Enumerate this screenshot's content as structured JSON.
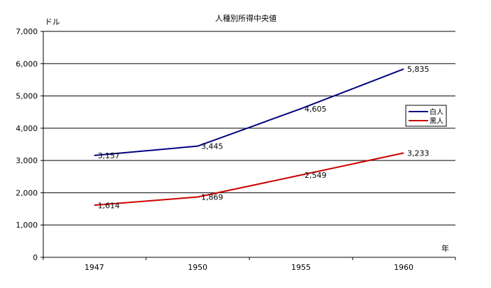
{
  "chart_data": {
    "type": "line",
    "title": "人種別所得中央値",
    "ylabel": "ドル",
    "xlabel": "年",
    "categories": [
      "1947",
      "1950",
      "1955",
      "1960"
    ],
    "ylim": [
      0,
      7000
    ],
    "yticks": [
      "0",
      "1,000",
      "2,000",
      "3,000",
      "4,000",
      "5,000",
      "6,000",
      "7,000"
    ],
    "grid": true,
    "legend_position": "right",
    "series": [
      {
        "name": "白人",
        "color": "#000080",
        "values": [
          3157,
          3445,
          4605,
          5835
        ],
        "labels": [
          "3,157",
          "3,445",
          "4,605",
          "5,835"
        ]
      },
      {
        "name": "黒人",
        "color": "#cc0000",
        "values": [
          1614,
          1869,
          2549,
          3233
        ],
        "labels": [
          "1,614",
          "1,869",
          "2,549",
          "3,233"
        ]
      }
    ]
  }
}
